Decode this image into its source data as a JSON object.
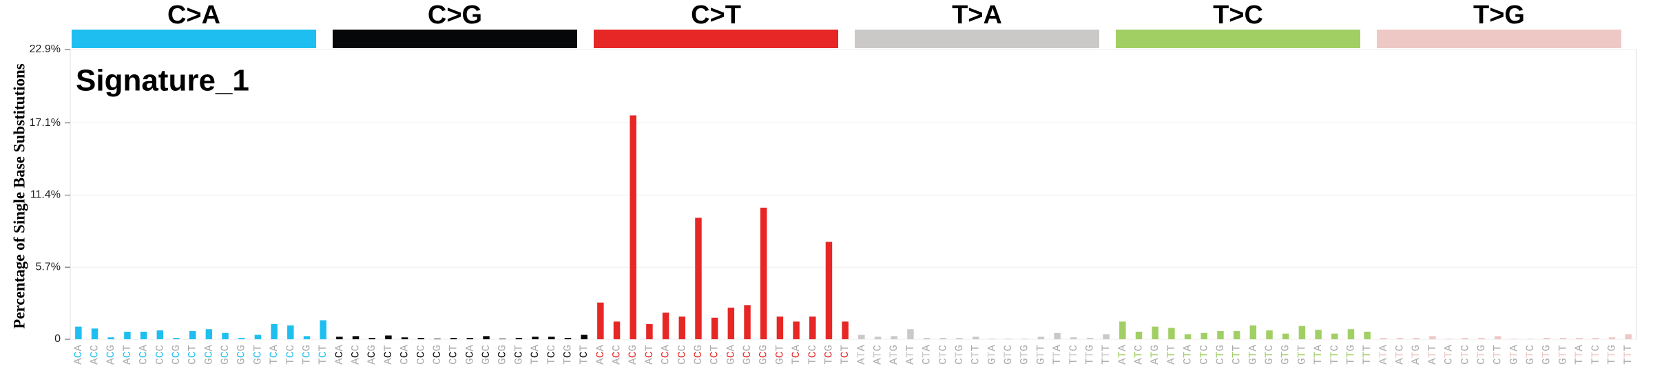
{
  "chart_data": {
    "type": "bar",
    "title": "Signature_1",
    "y_label": "Percentage of Single Base Substitutions",
    "ylim": [
      0,
      22.9
    ],
    "yticks": [
      0,
      {
        "value": 5.7,
        "label": "5.7%"
      },
      {
        "value": 11.4,
        "label": "11.4%"
      },
      {
        "value": 17.1,
        "label": "17.1%"
      },
      {
        "value": 22.9,
        "label": "22.9%"
      }
    ],
    "grid": true,
    "groups": [
      {
        "name": "C>A",
        "color": "#1ebff0",
        "categories": [
          "ACA",
          "ACC",
          "ACG",
          "ACT",
          "CCA",
          "CCC",
          "CCG",
          "CCT",
          "GCA",
          "GCC",
          "GCG",
          "GCT",
          "TCA",
          "TCC",
          "TCG",
          "TCT"
        ],
        "values": [
          1.0,
          0.85,
          0.15,
          0.6,
          0.6,
          0.7,
          0.1,
          0.65,
          0.8,
          0.5,
          0.1,
          0.35,
          1.2,
          1.1,
          0.25,
          1.5
        ]
      },
      {
        "name": "C>G",
        "color": "#050708",
        "categories": [
          "ACA",
          "ACC",
          "ACG",
          "ACT",
          "CCA",
          "CCC",
          "CCG",
          "CCT",
          "GCA",
          "GCC",
          "GCG",
          "GCT",
          "TCA",
          "TCC",
          "TCG",
          "TCT"
        ],
        "values": [
          0.2,
          0.25,
          0.1,
          0.3,
          0.15,
          0.1,
          0.05,
          0.1,
          0.1,
          0.25,
          0.05,
          0.1,
          0.2,
          0.2,
          0.1,
          0.35
        ]
      },
      {
        "name": "C>T",
        "color": "#e62725",
        "categories": [
          "ACA",
          "ACC",
          "ACG",
          "ACT",
          "CCA",
          "CCC",
          "CCG",
          "CCT",
          "GCA",
          "GCC",
          "GCG",
          "GCT",
          "TCA",
          "TCC",
          "TCG",
          "TCT"
        ],
        "values": [
          2.9,
          1.4,
          17.7,
          1.2,
          2.1,
          1.8,
          9.6,
          1.7,
          2.5,
          2.7,
          10.4,
          1.8,
          1.4,
          1.8,
          7.7,
          1.4
        ]
      },
      {
        "name": "T>A",
        "color": "#cbc9c8",
        "categories": [
          "ATA",
          "ATC",
          "ATG",
          "ATT",
          "CTA",
          "CTC",
          "CTG",
          "CTT",
          "GTA",
          "GTC",
          "GTG",
          "GTT",
          "TTA",
          "TTC",
          "TTG",
          "TTT"
        ],
        "values": [
          0.35,
          0.2,
          0.25,
          0.8,
          0.1,
          0.1,
          0.1,
          0.2,
          0.05,
          0.05,
          0.05,
          0.2,
          0.5,
          0.15,
          0.1,
          0.4
        ]
      },
      {
        "name": "T>C",
        "color": "#a1cf64",
        "categories": [
          "ATA",
          "ATC",
          "ATG",
          "ATT",
          "CTA",
          "CTC",
          "CTG",
          "CTT",
          "GTA",
          "GTC",
          "GTG",
          "GTT",
          "TTA",
          "TTC",
          "TTG",
          "TTT"
        ],
        "values": [
          1.4,
          0.6,
          1.0,
          0.9,
          0.4,
          0.5,
          0.65,
          0.65,
          1.1,
          0.7,
          0.45,
          1.05,
          0.75,
          0.45,
          0.8,
          0.6
        ]
      },
      {
        "name": "T>G",
        "color": "#edc8c5",
        "categories": [
          "ATA",
          "ATC",
          "ATG",
          "ATT",
          "CTA",
          "CTC",
          "CTG",
          "CTT",
          "GTA",
          "GTC",
          "GTG",
          "GTT",
          "TTA",
          "TTC",
          "TTG",
          "TTT"
        ],
        "values": [
          0.1,
          0.1,
          0.1,
          0.25,
          0.05,
          0.1,
          0.1,
          0.25,
          0.05,
          0.05,
          0.1,
          0.1,
          0.1,
          0.1,
          0.15,
          0.4
        ]
      }
    ]
  }
}
